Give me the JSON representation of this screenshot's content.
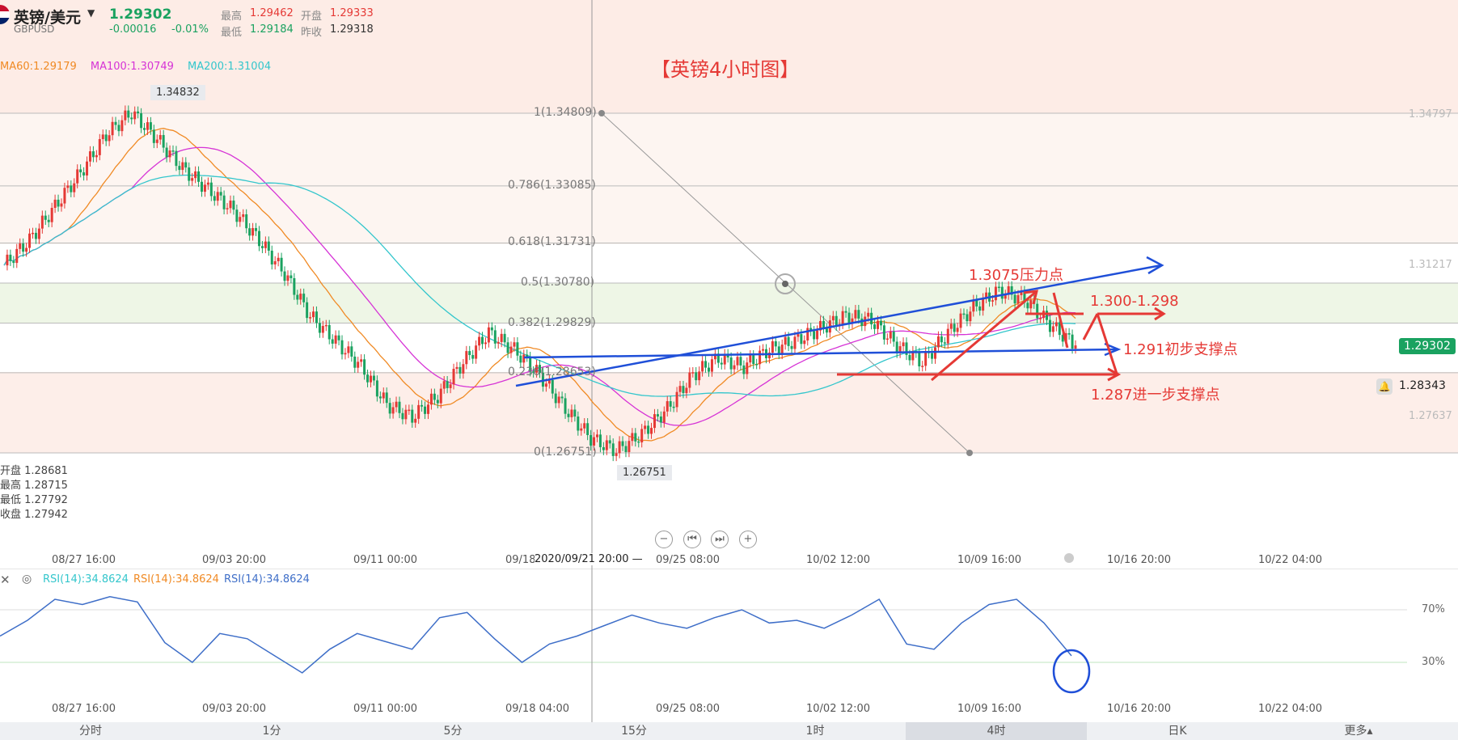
{
  "header": {
    "flag_icon": "uk-flag-icon",
    "name": "英镑/美元",
    "code": "GBPUSD",
    "price": "1.29302",
    "change": "-0.00016",
    "change_pct": "-0.01%",
    "high_label": "最高",
    "high": "1.29462",
    "open_label": "开盘",
    "open": "1.29333",
    "low_label": "最低",
    "low": "1.29184",
    "prev_label": "昨收",
    "prev": "1.29318"
  },
  "ma": {
    "ma60": "MA60:1.29179",
    "ma100": "MA100:1.30749",
    "ma200": "MA200:1.31004",
    "ma60_color": "#f08a24",
    "ma100_color": "#d633d6",
    "ma200_color": "#33c6cc"
  },
  "chart_title": "【英镑4小时图】",
  "ohlc_box": {
    "open": "开盘 1.28681",
    "high": "最高 1.28715",
    "low": "最低 1.27792",
    "close": "收盘 1.27942"
  },
  "price_labels": {
    "peak": "1.34832",
    "trough": "1.26751",
    "current": "1.29302",
    "alert": "1.28343",
    "right_axis": [
      "1.34797",
      "1.31217",
      "1.27637"
    ]
  },
  "annotations": {
    "resistance": "1.3075压力点",
    "range": "1.300-1.298",
    "support1": "1.291初步支撑点",
    "support2": "1.287进一步支撑点"
  },
  "crosshair_time": "2020/09/21 20:00 —",
  "rsi": {
    "label1": "RSI(14):34.8624",
    "label2": "RSI(14):34.8624",
    "label3": "RSI(14):34.8624",
    "level70": "70%",
    "level30": "30%"
  },
  "timeframes": [
    "分时",
    "1分",
    "5分",
    "15分",
    "1时",
    "4时",
    "日K",
    "更多▴"
  ],
  "active_timeframe": "4时",
  "chart_data": {
    "type": "line",
    "title": "【英镑4小时图】",
    "x_ticks": [
      "08/27 16:00",
      "09/03 20:00",
      "09/11 00:00",
      "09/18 04:00",
      "09/25 08:00",
      "10/02 12:00",
      "10/09 16:00",
      "10/16 20:00",
      "10/22 04:00"
    ],
    "fib_levels": [
      {
        "label": "1(1.34809)",
        "value": 1.34809
      },
      {
        "label": "0.786(1.33085)",
        "value": 1.33085
      },
      {
        "label": "0.618(1.31731)",
        "value": 1.31731
      },
      {
        "label": "0.5(1.30780)",
        "value": 1.3078
      },
      {
        "label": "0.382(1.29829)",
        "value": 1.29829
      },
      {
        "label": "0.236(1.28653)",
        "value": 1.28653
      },
      {
        "label": "0(1.26751)",
        "value": 1.26751
      }
    ],
    "ylim": [
      1.2675,
      1.3481
    ],
    "price_series": [
      1.312,
      1.318,
      1.326,
      1.334,
      1.343,
      1.3483,
      1.342,
      1.335,
      1.33,
      1.325,
      1.318,
      1.31,
      1.3,
      1.294,
      1.288,
      1.279,
      1.276,
      1.281,
      1.289,
      1.296,
      1.292,
      1.286,
      1.278,
      1.271,
      1.268,
      1.272,
      1.278,
      1.286,
      1.29,
      1.288,
      1.292,
      1.294,
      1.297,
      1.3,
      1.299,
      1.293,
      1.289,
      1.296,
      1.302,
      1.306,
      1.304,
      1.298,
      1.293
    ],
    "rsi_ticks": [
      "08/27 16:00",
      "09/03 20:00",
      "09/11 00:00",
      "09/18 04:00",
      "09/25 08:00",
      "10/02 12:00",
      "10/09 16:00",
      "10/16 20:00",
      "10/22 04:00"
    ],
    "rsi_values": [
      50,
      62,
      78,
      74,
      80,
      76,
      45,
      30,
      52,
      48,
      35,
      22,
      40,
      52,
      46,
      40,
      64,
      68,
      48,
      30,
      44,
      50,
      58,
      66,
      60,
      56,
      64,
      70,
      60,
      62,
      56,
      66,
      78,
      44,
      40,
      60,
      74,
      78,
      60,
      35
    ],
    "rsi_levels": [
      70,
      30
    ]
  }
}
